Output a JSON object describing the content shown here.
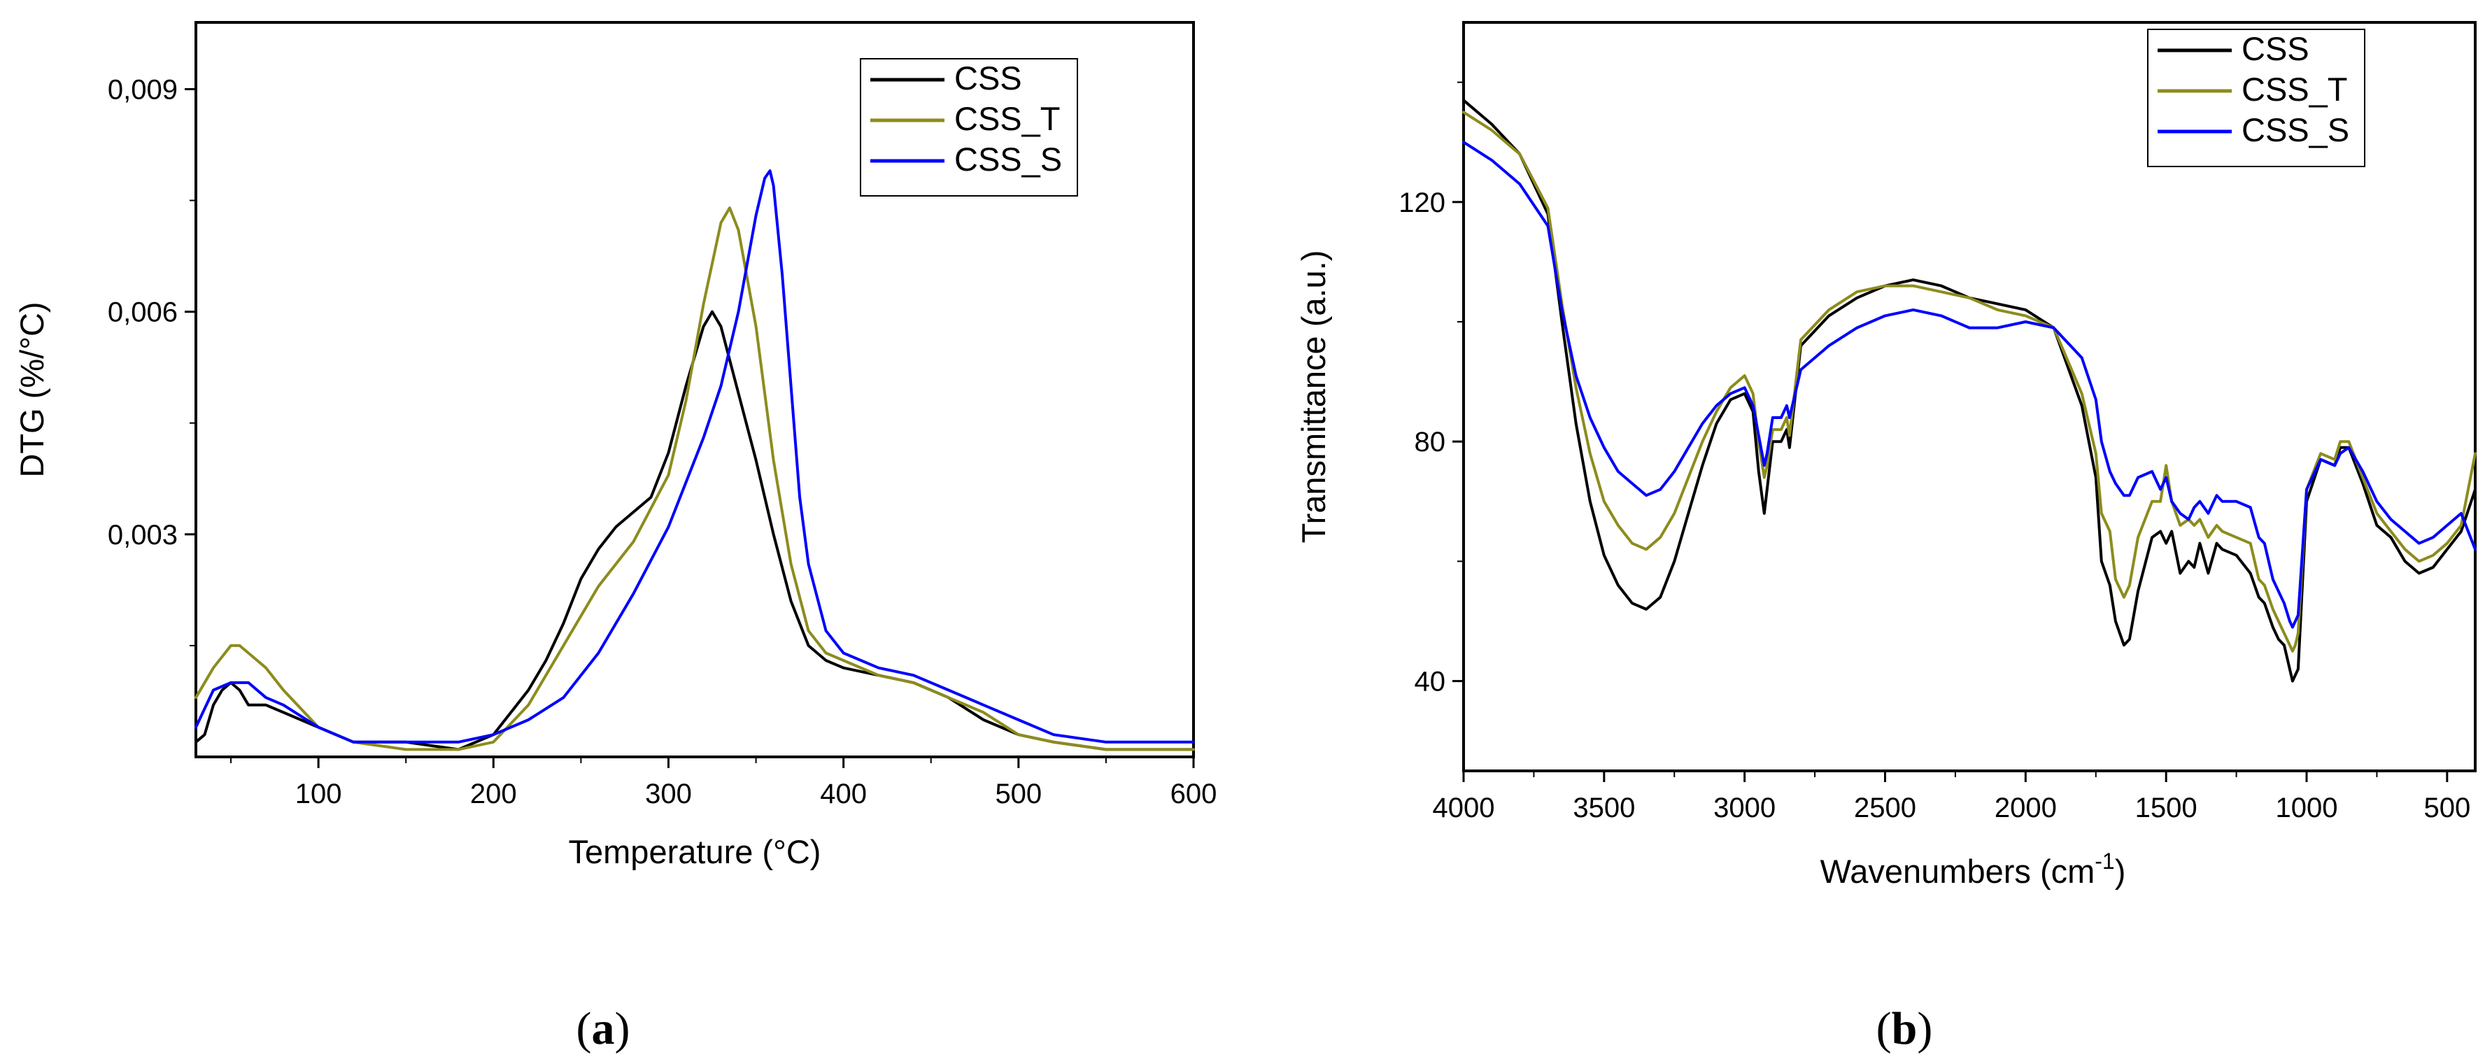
{
  "panel_labels": {
    "a": "a",
    "b": "b"
  },
  "chart_data": [
    {
      "type": "line",
      "panel": "a",
      "title": "",
      "xlabel": "Temperature (°C)",
      "ylabel": "DTG (%/°C)",
      "xlim": [
        30,
        600
      ],
      "ylim": [
        0,
        0.0099
      ],
      "x_ticks": [
        100,
        200,
        300,
        400,
        500,
        600
      ],
      "x_tick_labels": [
        "100",
        "200",
        "300",
        "400",
        "500",
        "600"
      ],
      "y_ticks": [
        0.003,
        0.006,
        0.009
      ],
      "y_tick_labels": [
        "0,003",
        "0,006",
        "0,009"
      ],
      "grid": false,
      "legend_position": "top-right",
      "series": [
        {
          "name": "CSS",
          "color": "#000000",
          "x": [
            30,
            35,
            40,
            45,
            50,
            55,
            60,
            70,
            80,
            100,
            120,
            150,
            180,
            200,
            210,
            220,
            230,
            240,
            250,
            260,
            270,
            280,
            290,
            300,
            310,
            320,
            325,
            330,
            340,
            350,
            360,
            370,
            380,
            390,
            400,
            420,
            440,
            460,
            480,
            500,
            520,
            550,
            600
          ],
          "y": [
            0.0002,
            0.0003,
            0.0007,
            0.0009,
            0.001,
            0.0009,
            0.0007,
            0.0007,
            0.0006,
            0.0004,
            0.0002,
            0.0002,
            0.0001,
            0.0003,
            0.0006,
            0.0009,
            0.0013,
            0.0018,
            0.0024,
            0.0028,
            0.0031,
            0.0033,
            0.0035,
            0.0041,
            0.005,
            0.0058,
            0.006,
            0.0058,
            0.0049,
            0.004,
            0.003,
            0.0021,
            0.0015,
            0.0013,
            0.0012,
            0.0011,
            0.001,
            0.0008,
            0.0005,
            0.0003,
            0.0002,
            0.0001,
            0.0001
          ]
        },
        {
          "name": "CSS_T",
          "color": "#8C8C1E",
          "x": [
            30,
            40,
            50,
            55,
            60,
            70,
            80,
            100,
            120,
            150,
            180,
            200,
            220,
            240,
            260,
            280,
            300,
            310,
            320,
            330,
            335,
            340,
            350,
            360,
            370,
            380,
            390,
            400,
            420,
            440,
            460,
            480,
            500,
            520,
            550,
            600
          ],
          "y": [
            0.0008,
            0.0012,
            0.0015,
            0.0015,
            0.0014,
            0.0012,
            0.0009,
            0.0004,
            0.0002,
            0.0001,
            0.0001,
            0.0002,
            0.0007,
            0.0015,
            0.0023,
            0.0029,
            0.0038,
            0.0048,
            0.0061,
            0.0072,
            0.0074,
            0.0071,
            0.0058,
            0.004,
            0.0026,
            0.0017,
            0.0014,
            0.0013,
            0.0011,
            0.001,
            0.0008,
            0.0006,
            0.0003,
            0.0002,
            0.0001,
            0.0001
          ]
        },
        {
          "name": "CSS_S",
          "color": "#0000FF",
          "x": [
            30,
            40,
            50,
            60,
            70,
            80,
            100,
            120,
            150,
            180,
            200,
            220,
            240,
            260,
            280,
            300,
            320,
            330,
            340,
            350,
            355,
            358,
            360,
            365,
            370,
            375,
            380,
            390,
            400,
            420,
            440,
            460,
            480,
            500,
            520,
            550,
            600
          ],
          "y": [
            0.0004,
            0.0009,
            0.001,
            0.001,
            0.0008,
            0.0007,
            0.0004,
            0.0002,
            0.0002,
            0.0002,
            0.0003,
            0.0005,
            0.0008,
            0.0014,
            0.0022,
            0.0031,
            0.0043,
            0.005,
            0.006,
            0.0073,
            0.0078,
            0.0079,
            0.0077,
            0.0065,
            0.005,
            0.0035,
            0.0026,
            0.0017,
            0.0014,
            0.0012,
            0.0011,
            0.0009,
            0.0007,
            0.0005,
            0.0003,
            0.0002,
            0.0002
          ]
        }
      ]
    },
    {
      "type": "line",
      "panel": "b",
      "title": "",
      "xlabel_main": "Wavenumbers (cm",
      "xlabel_sup": "-1",
      "xlabel_end": ")",
      "ylabel": "Transmittance (a.u.)",
      "xlim": [
        4000,
        400
      ],
      "ylim": [
        25,
        150
      ],
      "x_ticks": [
        4000,
        3500,
        3000,
        2500,
        2000,
        1500,
        1000,
        500
      ],
      "x_tick_labels": [
        "4000",
        "3500",
        "3000",
        "2500",
        "2000",
        "1500",
        "1000",
        "500"
      ],
      "y_ticks": [
        40,
        80,
        120
      ],
      "y_tick_labels": [
        "40",
        "80",
        "120"
      ],
      "grid": false,
      "legend_position": "top-right",
      "series": [
        {
          "name": "CSS",
          "color": "#000000",
          "x": [
            4000,
            3900,
            3800,
            3700,
            3650,
            3600,
            3550,
            3500,
            3450,
            3400,
            3350,
            3300,
            3250,
            3200,
            3150,
            3100,
            3050,
            3000,
            2970,
            2950,
            2930,
            2920,
            2900,
            2870,
            2850,
            2840,
            2800,
            2700,
            2600,
            2500,
            2400,
            2300,
            2200,
            2100,
            2000,
            1900,
            1800,
            1750,
            1730,
            1700,
            1680,
            1650,
            1630,
            1600,
            1550,
            1520,
            1500,
            1480,
            1450,
            1420,
            1400,
            1380,
            1350,
            1320,
            1300,
            1250,
            1200,
            1170,
            1150,
            1120,
            1100,
            1080,
            1060,
            1050,
            1040,
            1030,
            1000,
            950,
            900,
            880,
            850,
            800,
            750,
            700,
            650,
            600,
            550,
            500,
            450,
            400
          ],
          "y": [
            137,
            133,
            128,
            118,
            100,
            83,
            70,
            61,
            56,
            53,
            52,
            54,
            60,
            68,
            76,
            83,
            87,
            88,
            85,
            75,
            68,
            72,
            80,
            80,
            82,
            79,
            96,
            101,
            104,
            106,
            107,
            106,
            104,
            103,
            102,
            99,
            86,
            74,
            60,
            56,
            50,
            46,
            47,
            55,
            64,
            65,
            63,
            65,
            58,
            60,
            59,
            63,
            58,
            63,
            62,
            61,
            58,
            54,
            53,
            49,
            47,
            46,
            42,
            40,
            41,
            42,
            70,
            77,
            76,
            79,
            79,
            73,
            66,
            64,
            60,
            58,
            59,
            62,
            65,
            72
          ]
        },
        {
          "name": "CSS_T",
          "color": "#8C8C1E",
          "x": [
            4000,
            3900,
            3800,
            3700,
            3650,
            3600,
            3550,
            3500,
            3450,
            3400,
            3350,
            3300,
            3250,
            3200,
            3150,
            3100,
            3050,
            3000,
            2970,
            2950,
            2930,
            2920,
            2900,
            2870,
            2850,
            2840,
            2800,
            2700,
            2600,
            2500,
            2400,
            2300,
            2200,
            2100,
            2000,
            1900,
            1800,
            1750,
            1730,
            1700,
            1680,
            1650,
            1630,
            1600,
            1550,
            1520,
            1500,
            1480,
            1450,
            1420,
            1400,
            1380,
            1350,
            1320,
            1300,
            1250,
            1200,
            1170,
            1150,
            1120,
            1100,
            1080,
            1060,
            1050,
            1040,
            1030,
            1000,
            950,
            900,
            880,
            850,
            800,
            750,
            700,
            650,
            600,
            550,
            500,
            450,
            400
          ],
          "y": [
            135,
            132,
            128,
            119,
            103,
            89,
            78,
            70,
            66,
            63,
            62,
            64,
            68,
            74,
            80,
            85,
            89,
            91,
            88,
            80,
            74,
            76,
            82,
            82,
            84,
            81,
            97,
            102,
            105,
            106,
            106,
            105,
            104,
            102,
            101,
            99,
            88,
            78,
            68,
            65,
            57,
            54,
            56,
            64,
            70,
            70,
            76,
            70,
            66,
            67,
            66,
            67,
            64,
            66,
            65,
            64,
            63,
            57,
            56,
            52,
            50,
            48,
            46,
            45,
            46,
            48,
            72,
            78,
            77,
            80,
            80,
            74,
            68,
            65,
            62,
            60,
            61,
            63,
            66,
            78
          ]
        },
        {
          "name": "CSS_S",
          "color": "#0000FF",
          "x": [
            4000,
            3900,
            3800,
            3700,
            3650,
            3600,
            3550,
            3500,
            3450,
            3400,
            3350,
            3300,
            3250,
            3200,
            3150,
            3100,
            3050,
            3000,
            2970,
            2950,
            2930,
            2920,
            2900,
            2870,
            2850,
            2840,
            2800,
            2700,
            2600,
            2500,
            2400,
            2300,
            2200,
            2100,
            2000,
            1900,
            1800,
            1750,
            1730,
            1700,
            1680,
            1650,
            1630,
            1600,
            1550,
            1520,
            1500,
            1480,
            1450,
            1420,
            1400,
            1380,
            1350,
            1320,
            1300,
            1250,
            1200,
            1170,
            1150,
            1120,
            1100,
            1080,
            1060,
            1050,
            1040,
            1030,
            1000,
            950,
            900,
            880,
            850,
            800,
            750,
            700,
            650,
            600,
            550,
            500,
            450,
            400
          ],
          "y": [
            130,
            127,
            123,
            116,
            102,
            91,
            84,
            79,
            75,
            73,
            71,
            72,
            75,
            79,
            83,
            86,
            88,
            89,
            86,
            81,
            76,
            78,
            84,
            84,
            86,
            84,
            92,
            96,
            99,
            101,
            102,
            101,
            99,
            99,
            100,
            99,
            94,
            87,
            80,
            75,
            73,
            71,
            71,
            74,
            75,
            72,
            74,
            70,
            68,
            67,
            69,
            70,
            68,
            71,
            70,
            70,
            69,
            64,
            63,
            57,
            55,
            53,
            50,
            49,
            50,
            51,
            72,
            77,
            76,
            78,
            79,
            75,
            70,
            67,
            65,
            63,
            64,
            66,
            68,
            62
          ]
        }
      ]
    }
  ]
}
